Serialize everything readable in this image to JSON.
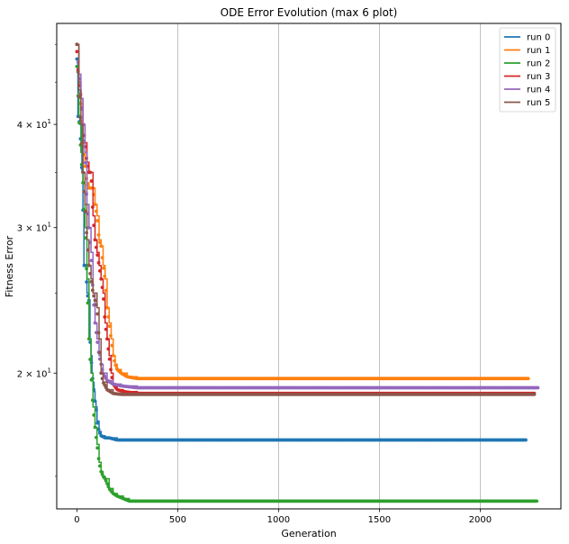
{
  "chart_data": {
    "type": "line",
    "title": "ODE Error Evolution (max 6 plot)",
    "xlabel": "Generation",
    "ylabel": "Fitness Error",
    "yscale": "log",
    "xlim": [
      -100,
      2400
    ],
    "ylim": [
      13.7,
      53.0
    ],
    "x_ticks": [
      0,
      500,
      1000,
      1500,
      2000
    ],
    "y_ticks": [
      {
        "value": 20,
        "label": "2 × 10",
        "exp": "1"
      },
      {
        "value": 30,
        "label": "3 × 10",
        "exp": "1"
      },
      {
        "value": 40,
        "label": "4 × 10",
        "exp": "1"
      }
    ],
    "grid": "vertical",
    "legend_position": "top-right",
    "series": [
      {
        "name": "run 0",
        "color": "#1f77b4",
        "end_x": 2230,
        "points": [
          [
            0,
            48
          ],
          [
            5,
            41
          ],
          [
            15,
            40
          ],
          [
            25,
            35
          ],
          [
            30,
            31.5
          ],
          [
            35,
            27
          ],
          [
            45,
            27
          ],
          [
            50,
            25
          ],
          [
            60,
            24.5
          ],
          [
            65,
            22
          ],
          [
            70,
            21
          ],
          [
            75,
            20
          ],
          [
            80,
            19.5
          ],
          [
            85,
            19
          ],
          [
            90,
            18.5
          ],
          [
            95,
            18.2
          ],
          [
            100,
            17.5
          ],
          [
            110,
            17
          ],
          [
            120,
            16.8
          ],
          [
            140,
            16.7
          ],
          [
            160,
            16.7
          ],
          [
            200,
            16.6
          ],
          [
            2230,
            16.6
          ]
        ]
      },
      {
        "name": "run 1",
        "color": "#ff7f0e",
        "end_x": 2240,
        "points": [
          [
            0,
            50
          ],
          [
            10,
            44
          ],
          [
            20,
            42
          ],
          [
            30,
            38
          ],
          [
            40,
            36
          ],
          [
            50,
            34
          ],
          [
            60,
            33.5
          ],
          [
            80,
            33.5
          ],
          [
            90,
            32
          ],
          [
            100,
            31
          ],
          [
            110,
            29
          ],
          [
            120,
            28.5
          ],
          [
            130,
            27
          ],
          [
            140,
            26
          ],
          [
            150,
            24
          ],
          [
            160,
            23
          ],
          [
            170,
            22
          ],
          [
            180,
            21
          ],
          [
            190,
            20.5
          ],
          [
            200,
            20.2
          ],
          [
            220,
            20
          ],
          [
            250,
            19.8
          ],
          [
            300,
            19.7
          ],
          [
            2240,
            19.7
          ]
        ]
      },
      {
        "name": "run 2",
        "color": "#2ca02c",
        "end_x": 2280,
        "points": [
          [
            0,
            47
          ],
          [
            10,
            41
          ],
          [
            20,
            37
          ],
          [
            30,
            34
          ],
          [
            40,
            30
          ],
          [
            50,
            26
          ],
          [
            60,
            22
          ],
          [
            70,
            20
          ],
          [
            80,
            18.2
          ],
          [
            90,
            17.2
          ],
          [
            100,
            16.4
          ],
          [
            110,
            15.6
          ],
          [
            120,
            15.2
          ],
          [
            130,
            15
          ],
          [
            140,
            14.9
          ],
          [
            160,
            14.5
          ],
          [
            180,
            14.3
          ],
          [
            200,
            14.2
          ],
          [
            230,
            14.1
          ],
          [
            260,
            14.0
          ],
          [
            2280,
            14.0
          ]
        ]
      },
      {
        "name": "run 3",
        "color": "#d62728",
        "end_x": 2270,
        "points": [
          [
            0,
            49
          ],
          [
            10,
            45
          ],
          [
            20,
            43
          ],
          [
            30,
            40
          ],
          [
            40,
            38
          ],
          [
            50,
            36
          ],
          [
            60,
            35
          ],
          [
            70,
            35
          ],
          [
            80,
            31
          ],
          [
            90,
            29
          ],
          [
            100,
            28
          ],
          [
            110,
            27
          ],
          [
            120,
            26
          ],
          [
            130,
            25
          ],
          [
            140,
            23
          ],
          [
            150,
            22
          ],
          [
            160,
            21
          ],
          [
            170,
            20
          ],
          [
            180,
            19.4
          ],
          [
            200,
            19.1
          ],
          [
            230,
            19.0
          ],
          [
            300,
            18.9
          ],
          [
            2270,
            18.9
          ]
        ]
      },
      {
        "name": "run 4",
        "color": "#9467bd",
        "end_x": 2290,
        "points": [
          [
            0,
            50
          ],
          [
            10,
            46
          ],
          [
            20,
            43
          ],
          [
            30,
            40
          ],
          [
            40,
            37
          ],
          [
            50,
            32
          ],
          [
            60,
            30
          ],
          [
            70,
            28
          ],
          [
            80,
            25
          ],
          [
            90,
            23
          ],
          [
            100,
            22
          ],
          [
            110,
            21
          ],
          [
            120,
            20.5
          ],
          [
            130,
            20
          ],
          [
            150,
            19.6
          ],
          [
            180,
            19.4
          ],
          [
            220,
            19.3
          ],
          [
            300,
            19.2
          ],
          [
            2290,
            19.2
          ]
        ]
      },
      {
        "name": "run 5",
        "color": "#8c564b",
        "end_x": 2270,
        "points": [
          [
            0,
            50
          ],
          [
            10,
            44
          ],
          [
            20,
            40
          ],
          [
            30,
            35
          ],
          [
            40,
            32
          ],
          [
            50,
            29
          ],
          [
            60,
            27
          ],
          [
            70,
            26
          ],
          [
            80,
            25
          ],
          [
            100,
            24
          ],
          [
            110,
            22
          ],
          [
            120,
            20
          ],
          [
            130,
            19.5
          ],
          [
            150,
            19.1
          ],
          [
            180,
            18.9
          ],
          [
            220,
            18.85
          ],
          [
            2270,
            18.85
          ]
        ]
      }
    ]
  }
}
